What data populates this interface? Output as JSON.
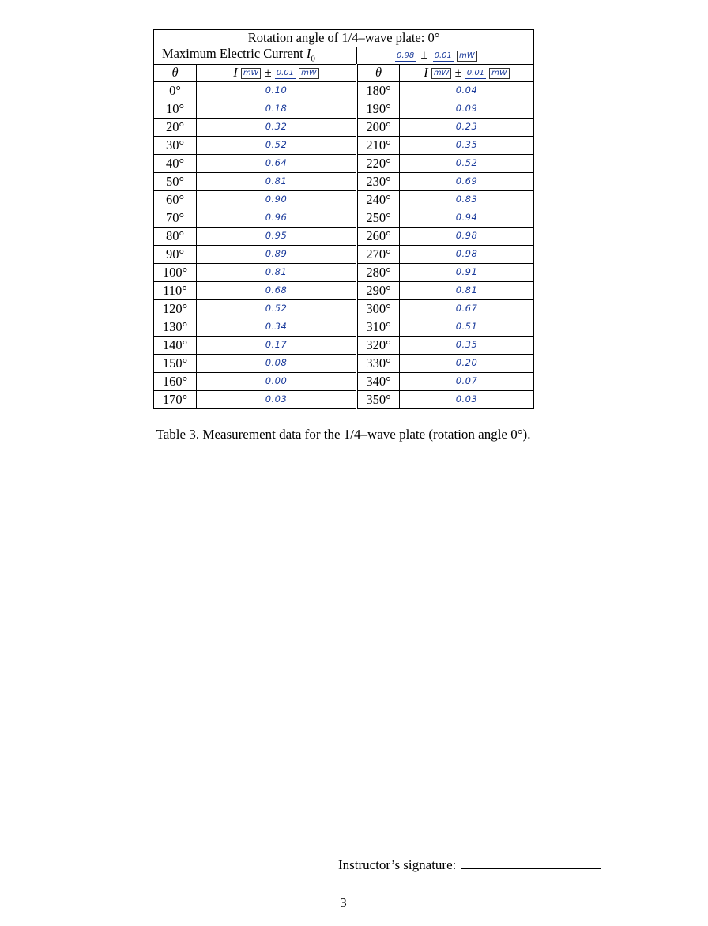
{
  "table": {
    "title": "Rotation angle of 1/4–wave plate: 0°",
    "max_current_label": "Maximum Electric Current ",
    "max_current_symbol": "I",
    "max_current_subscript": "0",
    "max_current_value": "0.98",
    "max_current_pm": "±",
    "max_current_uncertainty": "0.01",
    "max_current_unit": "mW",
    "header": {
      "theta": "θ",
      "intensity_symbol": "I",
      "unit_box": "mW",
      "pm": "±",
      "uncertainty": "0.01",
      "unit_after": "mW"
    },
    "rows": [
      {
        "theta_left": "0°",
        "i_left": "0.10",
        "theta_right": "180°",
        "i_right": "0.04"
      },
      {
        "theta_left": "10°",
        "i_left": "0.18",
        "theta_right": "190°",
        "i_right": "0.09"
      },
      {
        "theta_left": "20°",
        "i_left": "0.32",
        "theta_right": "200°",
        "i_right": "0.23"
      },
      {
        "theta_left": "30°",
        "i_left": "0.52",
        "theta_right": "210°",
        "i_right": "0.35"
      },
      {
        "theta_left": "40°",
        "i_left": "0.64",
        "theta_right": "220°",
        "i_right": "0.52"
      },
      {
        "theta_left": "50°",
        "i_left": "0.81",
        "theta_right": "230°",
        "i_right": "0.69"
      },
      {
        "theta_left": "60°",
        "i_left": "0.90",
        "theta_right": "240°",
        "i_right": "0.83"
      },
      {
        "theta_left": "70°",
        "i_left": "0.96",
        "theta_right": "250°",
        "i_right": "0.94"
      },
      {
        "theta_left": "80°",
        "i_left": "0.95",
        "theta_right": "260°",
        "i_right": "0.98"
      },
      {
        "theta_left": "90°",
        "i_left": "0.89",
        "theta_right": "270°",
        "i_right": "0.98"
      },
      {
        "theta_left": "100°",
        "i_left": "0.81",
        "theta_right": "280°",
        "i_right": "0.91"
      },
      {
        "theta_left": "110°",
        "i_left": "0.68",
        "theta_right": "290°",
        "i_right": "0.81"
      },
      {
        "theta_left": "120°",
        "i_left": "0.52",
        "theta_right": "300°",
        "i_right": "0.67"
      },
      {
        "theta_left": "130°",
        "i_left": "0.34",
        "theta_right": "310°",
        "i_right": "0.51"
      },
      {
        "theta_left": "140°",
        "i_left": "0.17",
        "theta_right": "320°",
        "i_right": "0.35"
      },
      {
        "theta_left": "150°",
        "i_left": "0.08",
        "theta_right": "330°",
        "i_right": "0.20"
      },
      {
        "theta_left": "160°",
        "i_left": "0.00",
        "theta_right": "340°",
        "i_right": "0.07"
      },
      {
        "theta_left": "170°",
        "i_left": "0.03",
        "theta_right": "350°",
        "i_right": "0.03"
      }
    ]
  },
  "caption": "Table 3. Measurement data for the 1/4–wave plate (rotation angle 0°).",
  "signature_label": "Instructor’s signature:",
  "page_number": "3"
}
